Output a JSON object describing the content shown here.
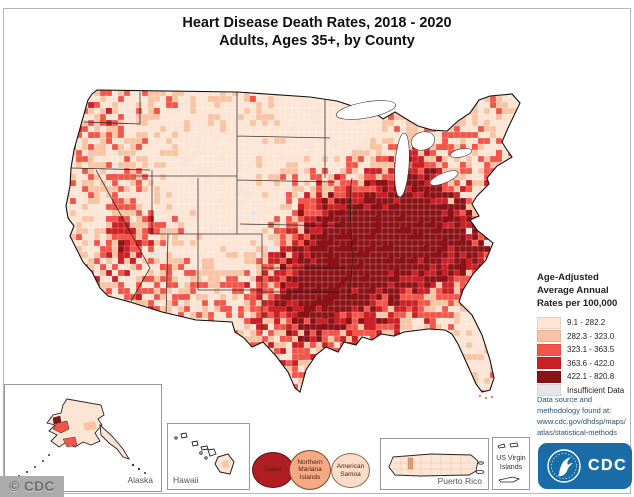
{
  "title": {
    "line1": "Heart Disease Death Rates, 2018 - 2020",
    "line2": "Adults, Ages 35+, by County"
  },
  "legend": {
    "title_lines": [
      "Age-Adjusted",
      "Average Annual",
      "Rates per 100,000"
    ],
    "items": [
      {
        "label": "9.1 - 282.2",
        "color": "#fde5d6"
      },
      {
        "label": "282.3 - 323.0",
        "color": "#f9c4a4"
      },
      {
        "label": "323.1 - 363.5",
        "color": "#f2564a"
      },
      {
        "label": "363.6 - 422.0",
        "color": "#ca2027"
      },
      {
        "label": "422.1 - 820.8",
        "color": "#8b1216"
      },
      {
        "label": "Insufficient Data",
        "color": "#e4e6e8"
      }
    ]
  },
  "source_note": {
    "lines": [
      "Data source and",
      "methodology found at:",
      "www.cdc.gov/dhdsp/maps/",
      "atlas/statistical-methods"
    ]
  },
  "insets": {
    "alaska_label": "Alaska",
    "hawaii_label": "Hawaii",
    "puerto_rico_label": "Puerto Rico",
    "usvi_lines": [
      "US Virgin",
      "Islands"
    ]
  },
  "territories": [
    {
      "name": "guam",
      "label_lines": [
        "Guam"
      ],
      "color": "#b01e24"
    },
    {
      "name": "northern-mariana-islands",
      "label_lines": [
        "Northern",
        "Mariana",
        "Islands"
      ],
      "color": "#f5a983"
    },
    {
      "name": "american-samoa",
      "label_lines": [
        "American",
        "Samoa"
      ],
      "color": "#fbdcc9"
    }
  ],
  "watermark": "© CDC",
  "logo": {
    "cdc_text": "CDC",
    "bg_color": "#1a6ca6"
  },
  "map": {
    "type": "choropleth",
    "region": "United States, by county",
    "measure": "Age-Adjusted Average Annual Rates per 100,000",
    "classes": [
      "9.1 - 282.2",
      "282.3 - 323.0",
      "323.1 - 363.5",
      "363.6 - 422.0",
      "422.1 - 820.8",
      "Insufficient Data"
    ]
  }
}
